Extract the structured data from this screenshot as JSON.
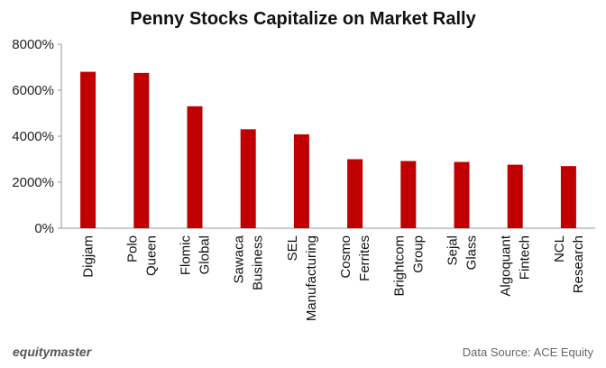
{
  "chart_data": {
    "type": "bar",
    "title": "Penny Stocks Capitalize on Market Rally",
    "xlabel": "",
    "ylabel": "",
    "categories": [
      [
        "Digjam"
      ],
      [
        "Polo",
        "Queen"
      ],
      [
        "Flomic",
        "Global"
      ],
      [
        "Sawaca",
        "Business"
      ],
      [
        "SEL",
        "Manufacturing"
      ],
      [
        "Cosmo",
        "Ferrites"
      ],
      [
        "Brightcom",
        "Group"
      ],
      [
        "Sejal",
        "Glass"
      ],
      [
        "Algoquant",
        "Fintech"
      ],
      [
        "NCL",
        "Research"
      ]
    ],
    "values": [
      6800,
      6750,
      5300,
      4300,
      4080,
      3000,
      2920,
      2880,
      2760,
      2700
    ],
    "ylim": [
      0,
      8000
    ],
    "yticks": [
      0,
      2000,
      4000,
      6000,
      8000
    ],
    "ytick_labels": [
      "0%",
      "2000%",
      "4000%",
      "6000%",
      "8000%"
    ],
    "grid": false,
    "legend": "none",
    "bar_color": "#c00000"
  },
  "footer": {
    "brand": "equitymaster",
    "source": "Data Source: ACE Equity"
  }
}
